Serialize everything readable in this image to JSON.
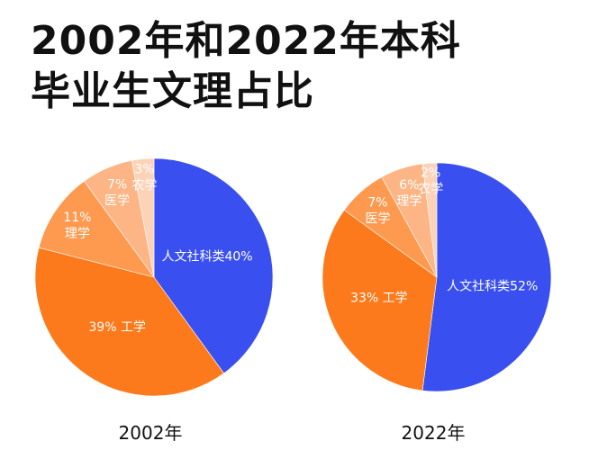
{
  "title_line1": "2002年和2022年本科",
  "title_line2": "毕业生文理占比",
  "chart_data": [
    {
      "type": "pie",
      "xlabel": "2002年",
      "start": "12 o'clock, clockwise",
      "slices": [
        {
          "label": "人文社科类",
          "value": 40,
          "color": "#3a4ff0"
        },
        {
          "label": "工学",
          "value": 39,
          "color": "#fd7a1c"
        },
        {
          "label": "理学",
          "value": 11,
          "color": "#fd9a50"
        },
        {
          "label": "医学",
          "value": 7,
          "color": "#fdb585"
        },
        {
          "label": "农学",
          "value": 3,
          "color": "#fdd3b8"
        }
      ]
    },
    {
      "type": "pie",
      "xlabel": "2022年",
      "start": "12 o'clock, clockwise",
      "slices": [
        {
          "label": "人文社科类",
          "value": 52,
          "color": "#3a4ff0"
        },
        {
          "label": "工学",
          "value": 33,
          "color": "#fd7a1c"
        },
        {
          "label": "医学",
          "value": 7,
          "color": "#fd9a50"
        },
        {
          "label": "理学",
          "value": 6,
          "color": "#fdb585"
        },
        {
          "label": "农学",
          "value": 2,
          "color": "#fdd3b8"
        }
      ]
    }
  ]
}
